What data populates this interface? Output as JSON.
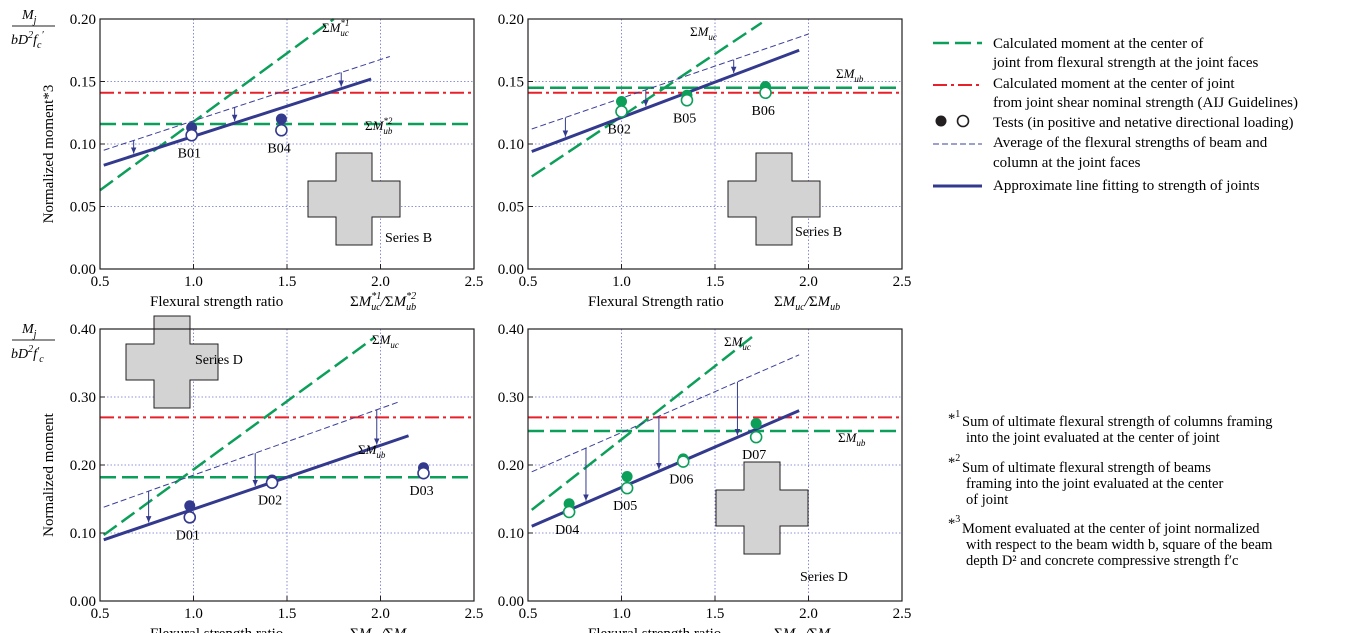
{
  "colors": {
    "green": "#0c9f5a",
    "red": "#e8202a",
    "blue": "#333a8e",
    "thin": "#3b3f9a",
    "grid": "#6a6fd0",
    "plate": "#d3d3d3"
  },
  "legend": {
    "items": [
      {
        "style": "green-dash",
        "lines": [
          "Calculated moment at the center of",
          "joint from flexural strength at the joint faces"
        ]
      },
      {
        "style": "red-dashdot",
        "lines": [
          "Calculated moment at the center of joint",
          "from joint shear nominal strength (AIJ Guidelines)"
        ]
      },
      {
        "style": "markers",
        "lines": [
          "Tests (in positive and netative directional loading)"
        ]
      },
      {
        "style": "thin-dash",
        "lines": [
          "Average of the flexural strengths of beam and",
          "column at the joint faces"
        ]
      },
      {
        "style": "thick",
        "lines": [
          "Approximate line fitting to strength of joints"
        ]
      }
    ]
  },
  "notes": [
    {
      "mark": "*",
      "sup": "1",
      "lines": [
        "Sum of ultimate flexural strength of columns framing",
        "into the joint evaluated at the center of joint"
      ]
    },
    {
      "mark": "*",
      "sup": "2",
      "lines": [
        "Sum of ultimate flexural strength of beams",
        "framing into the joint evaluated at the center",
        "of joint"
      ]
    },
    {
      "mark": "*",
      "sup": "3",
      "lines": [
        "Moment evaluated at the center of joint normalized",
        "with respect to the beam width b, square of the beam",
        "depth D² and concrete compressive strength f′c"
      ]
    }
  ],
  "chart_data": [
    {
      "type": "scatter",
      "panel": "top-left",
      "ylabel": "Normalized moment*3",
      "xlabel": "Flexural strength ratio",
      "xlabel_math": "ΣM*1uc / ΣM*2ub",
      "xlim": [
        0.5,
        2.5
      ],
      "ylim": [
        0.0,
        0.2
      ],
      "xticks": [
        "0.5",
        "1.0",
        "1.5",
        "2.0",
        "2.5"
      ],
      "yticks": [
        "0.00",
        "0.05",
        "0.10",
        "0.15",
        "0.20"
      ],
      "series_label": "Series B",
      "lines": {
        "sum_muc": [
          [
            0.5,
            0.063
          ],
          [
            1.75,
            0.2
          ]
        ],
        "sum_mub": 0.116,
        "aij": 0.141,
        "average": [
          [
            0.52,
            0.095
          ],
          [
            2.05,
            0.17
          ]
        ],
        "fit": [
          [
            0.52,
            0.083
          ],
          [
            1.95,
            0.152
          ]
        ]
      },
      "points": [
        {
          "label": "B01",
          "x": 0.99,
          "positive": 0.113,
          "negative": 0.107
        },
        {
          "label": "B04",
          "x": 1.47,
          "positive": 0.12,
          "negative": 0.111
        }
      ]
    },
    {
      "type": "scatter",
      "panel": "top-right",
      "xlabel": "Flexural Strength ratio",
      "xlabel_math": "ΣMuc / ΣMub",
      "xlim": [
        0.5,
        2.5
      ],
      "ylim": [
        0.0,
        0.2
      ],
      "xticks": [
        "0.5",
        "1.0",
        "1.5",
        "2.0",
        "2.5"
      ],
      "yticks": [
        "0.00",
        "0.05",
        "0.10",
        "0.15",
        "0.20"
      ],
      "series_label": "Series B",
      "lines": {
        "sum_muc": [
          [
            0.52,
            0.074
          ],
          [
            1.75,
            0.197
          ]
        ],
        "sum_mub": 0.145,
        "aij": 0.141,
        "average": [
          [
            0.52,
            0.112
          ],
          [
            2.0,
            0.188
          ]
        ],
        "fit": [
          [
            0.52,
            0.094
          ],
          [
            1.95,
            0.175
          ]
        ]
      },
      "points": [
        {
          "label": "B02",
          "x": 1.0,
          "positive": 0.134,
          "negative": 0.126
        },
        {
          "label": "B05",
          "x": 1.35,
          "positive": 0.139,
          "negative": 0.135
        },
        {
          "label": "B06",
          "x": 1.77,
          "positive": 0.146,
          "negative": 0.141
        }
      ]
    },
    {
      "type": "scatter",
      "panel": "bottom-left",
      "ylabel": "Normalized moment",
      "xlabel": "Flexural strength ratio",
      "xlabel_math": "ΣMuc / ΣMub",
      "xlim": [
        0.5,
        2.5
      ],
      "ylim": [
        0.0,
        0.4
      ],
      "xticks": [
        "0.5",
        "1.0",
        "1.5",
        "2.0",
        "2.5"
      ],
      "yticks": [
        "0.00",
        "0.10",
        "0.20",
        "0.30",
        "0.40"
      ],
      "series_label": "Series D",
      "lines": {
        "sum_muc": [
          [
            0.52,
            0.097
          ],
          [
            1.97,
            0.388
          ]
        ],
        "sum_mub": 0.182,
        "aij": 0.27,
        "average": [
          [
            0.52,
            0.138
          ],
          [
            2.1,
            0.293
          ]
        ],
        "fit": [
          [
            0.52,
            0.09
          ],
          [
            2.15,
            0.243
          ]
        ]
      },
      "points": [
        {
          "label": "D01",
          "x": 0.98,
          "positive": 0.14,
          "negative": 0.123
        },
        {
          "label": "D02",
          "x": 1.42,
          "positive": 0.178,
          "negative": 0.174
        },
        {
          "label": "D03",
          "x": 2.23,
          "positive": 0.196,
          "negative": 0.188
        }
      ]
    },
    {
      "type": "scatter",
      "panel": "bottom-right",
      "xlabel": "Flexural strength ratio",
      "xlabel_math": "ΣMuc / ΣMub",
      "xlim": [
        0.5,
        2.5
      ],
      "ylim": [
        0.0,
        0.4
      ],
      "xticks": [
        "0.5",
        "1.0",
        "1.5",
        "2.0",
        "2.5"
      ],
      "yticks": [
        "0.00",
        "0.10",
        "0.20",
        "0.30",
        "0.40"
      ],
      "series_label": "Series D",
      "lines": {
        "sum_muc": [
          [
            0.52,
            0.134
          ],
          [
            1.72,
            0.393
          ]
        ],
        "sum_mub": 0.25,
        "aij": 0.27,
        "average": [
          [
            0.52,
            0.19
          ],
          [
            1.95,
            0.362
          ]
        ],
        "fit": [
          [
            0.52,
            0.11
          ],
          [
            1.95,
            0.28
          ]
        ]
      },
      "points": [
        {
          "label": "D04",
          "x": 0.72,
          "positive": 0.143,
          "negative": 0.131
        },
        {
          "label": "D05",
          "x": 1.03,
          "positive": 0.183,
          "negative": 0.166
        },
        {
          "label": "D06",
          "x": 1.33,
          "positive": 0.209,
          "negative": 0.205
        },
        {
          "label": "D07",
          "x": 1.72,
          "positive": 0.261,
          "negative": 0.241
        }
      ]
    }
  ]
}
